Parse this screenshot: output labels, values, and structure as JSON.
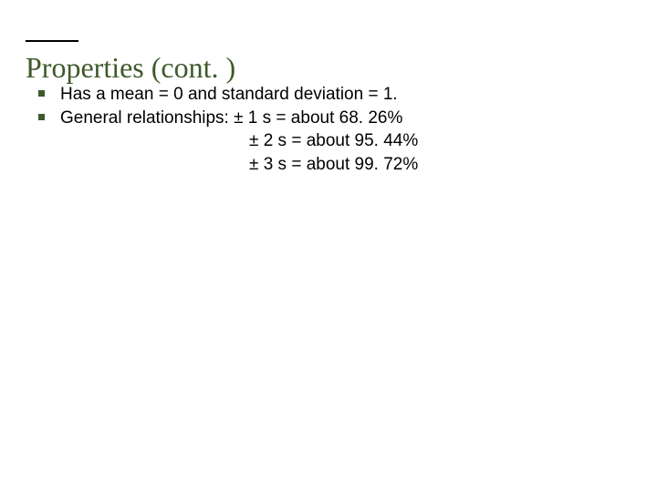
{
  "title": "Properties (cont. )",
  "bullets": {
    "b1": "Has a mean = 0 and standard deviation = 1.",
    "b2": "General relationships: ± 1 s = about 68. 26%",
    "b2_l2": "± 2 s = about 95. 44%",
    "b2_l3": "± 3 s = about 99. 72%"
  },
  "colors": {
    "accent": "#3d5a2a",
    "text": "#000000",
    "background": "#ffffff"
  }
}
